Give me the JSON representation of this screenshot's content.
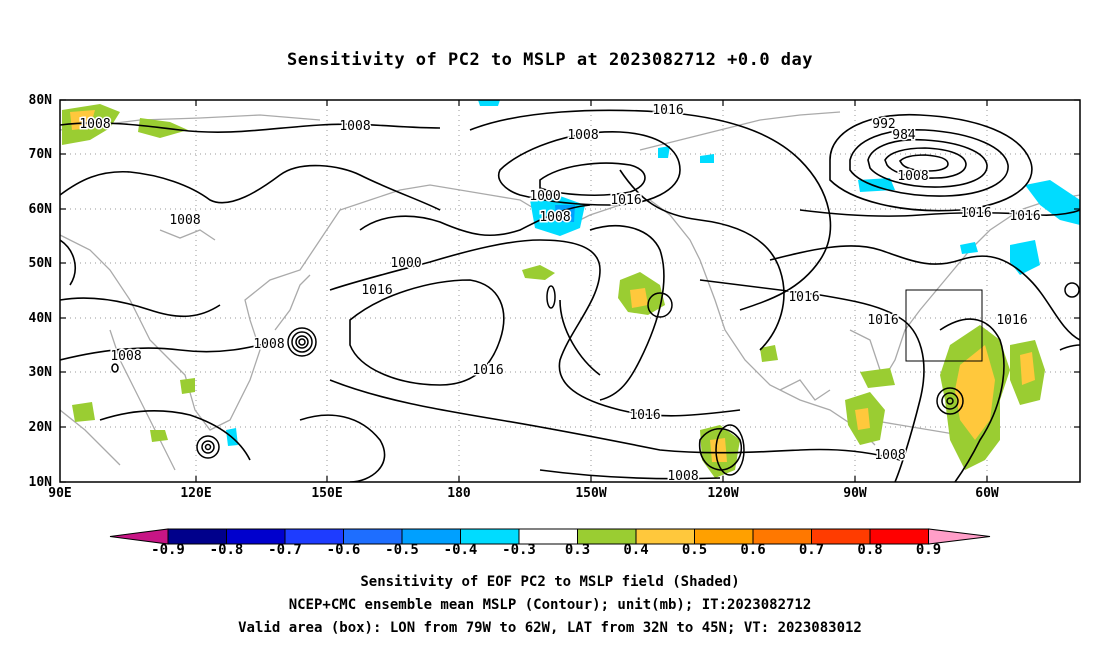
{
  "title": "Sensitivity of PC2 to MSLP at 2023082712 +0.0 day",
  "map": {
    "lat_ticks": [
      "80N",
      "70N",
      "60N",
      "50N",
      "40N",
      "30N",
      "20N",
      "10N"
    ],
    "lon_ticks": [
      "90E",
      "120E",
      "150E",
      "180",
      "150W",
      "120W",
      "90W",
      "60W"
    ],
    "contour_labels": [
      {
        "text": "1008",
        "region": "north-atlantic-west"
      },
      {
        "text": "1008",
        "region": "siberia-north"
      },
      {
        "text": "1016",
        "region": "bering-sea"
      },
      {
        "text": "1008",
        "region": "bering-sea-low"
      },
      {
        "text": "1000",
        "region": "bering-sea-low"
      },
      {
        "text": "1008",
        "region": "alaska-gulf"
      },
      {
        "text": "1016",
        "region": "alaska-gulf"
      },
      {
        "text": "1000",
        "region": "greenland-low"
      },
      {
        "text": "992",
        "region": "greenland-low"
      },
      {
        "text": "984",
        "region": "greenland-low"
      },
      {
        "text": "1008",
        "region": "labrador"
      },
      {
        "text": "1016",
        "region": "north-atlantic"
      },
      {
        "text": "1016",
        "region": "mongolia"
      },
      {
        "text": "1008",
        "region": "north-pacific-west"
      },
      {
        "text": "1016",
        "region": "north-pacific-west"
      },
      {
        "text": "1008",
        "region": "japan"
      },
      {
        "text": "1008",
        "region": "india"
      },
      {
        "text": "1016",
        "region": "subtropical-pacific"
      },
      {
        "text": "1016",
        "region": "east-pacific"
      },
      {
        "text": "1008",
        "region": "east-pacific-tropics"
      },
      {
        "text": "1016",
        "region": "central-us"
      },
      {
        "text": "1016",
        "region": "east-us"
      },
      {
        "text": "1016",
        "region": "atlantic-subtropics"
      },
      {
        "text": "1008",
        "region": "caribbean"
      }
    ],
    "valid_box": {
      "lon_from": "79W",
      "lon_to": "62W",
      "lat_from": "32N",
      "lat_to": "45N"
    }
  },
  "colorbar": {
    "labels": [
      "-0.9",
      "-0.8",
      "-0.7",
      "-0.6",
      "-0.5",
      "-0.4",
      "-0.3",
      "0.3",
      "0.4",
      "0.5",
      "0.6",
      "0.7",
      "0.8",
      "0.9"
    ],
    "colors": [
      "#00008b",
      "#0000cd",
      "#1e3cff",
      "#1e6eff",
      "#00a0ff",
      "#00dcff",
      "#ffffff",
      "#9acd32",
      "#ffc83c",
      "#ffa000",
      "#ff7800",
      "#ff3c00",
      "#ff0000"
    ],
    "left_arrow_color": "#c71585",
    "right_arrow_color": "#ff9ec8"
  },
  "captions": [
    "Sensitivity of EOF PC2 to MSLP field (Shaded)",
    "NCEP+CMC ensemble mean MSLP (Contour); unit(mb); IT:2023082712",
    "Valid area (box): LON from 79W to 62W, LAT from 32N to 45N; VT: 2023083012"
  ]
}
